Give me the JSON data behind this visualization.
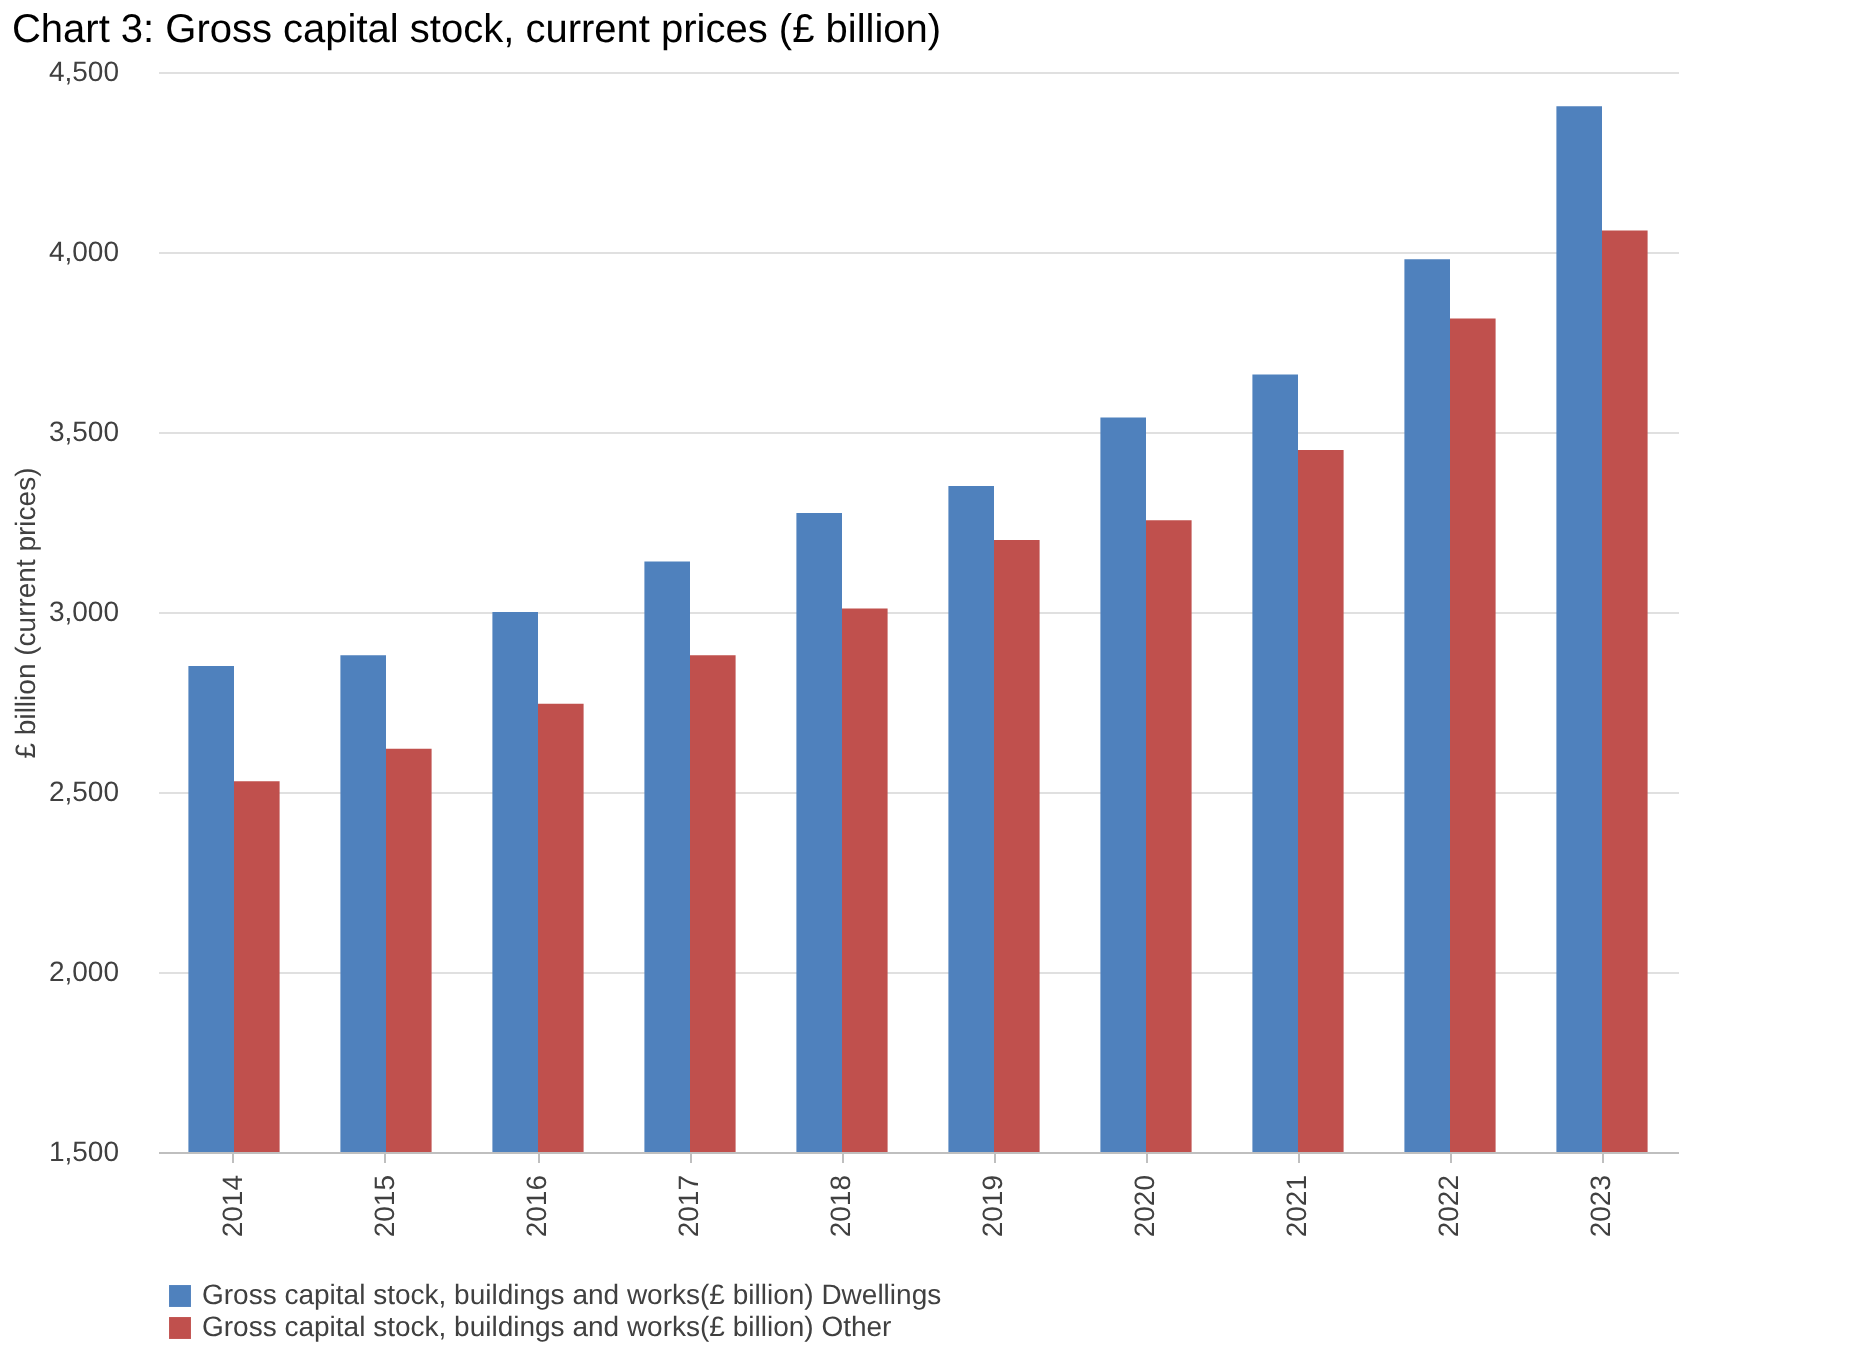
{
  "chart_data": {
    "type": "bar",
    "title": "Chart 3: Gross capital stock, current prices (£ billion)",
    "ylabel": "£ billion (current prices)",
    "categories": [
      "2014",
      "2015",
      "2016",
      "2017",
      "2018",
      "2019",
      "2020",
      "2021",
      "2022",
      "2023"
    ],
    "series": [
      {
        "name": "Gross capital stock, buildings and works(£ billion) Dwellings",
        "color": "#4f81bd",
        "values": [
          2850,
          2880,
          3000,
          3140,
          3275,
          3350,
          3540,
          3660,
          3980,
          4405
        ]
      },
      {
        "name": "Gross capital stock, buildings and works(£ billion) Other",
        "color": "#c0504d",
        "values": [
          2530,
          2620,
          2745,
          2880,
          3010,
          3200,
          3255,
          3450,
          3815,
          4060
        ]
      }
    ],
    "ylim": [
      1500,
      4500
    ],
    "yticks": [
      {
        "value": 1500,
        "label": "1,500"
      },
      {
        "value": 2000,
        "label": "2,000"
      },
      {
        "value": 2500,
        "label": "2,500"
      },
      {
        "value": 3000,
        "label": "3,000"
      },
      {
        "value": 3500,
        "label": "3,500"
      },
      {
        "value": 4000,
        "label": "4,000"
      },
      {
        "value": 4500,
        "label": "4,500"
      }
    ],
    "grid": "y",
    "legend": "bottom"
  }
}
